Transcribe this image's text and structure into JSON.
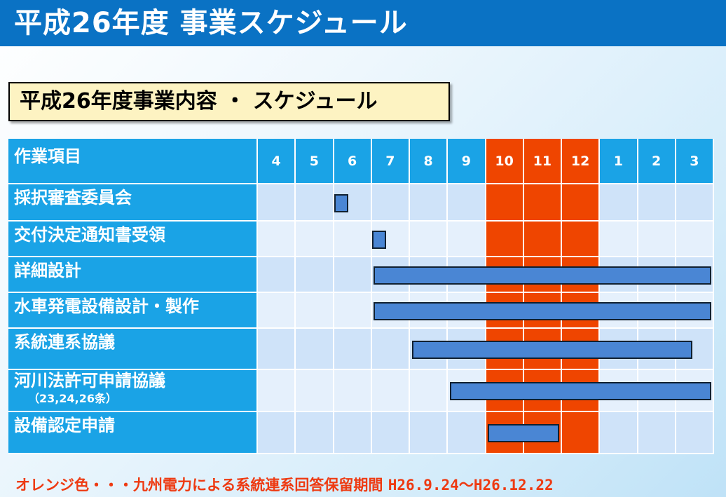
{
  "header": {
    "title": "平成26年度 事業スケジュール"
  },
  "subtitle": "平成26年度事業内容 ・ スケジュール",
  "table": {
    "task_header": "作業項目",
    "months": [
      "4",
      "5",
      "6",
      "7",
      "8",
      "9",
      "10",
      "11",
      "12",
      "1",
      "2",
      "3"
    ],
    "highlight_months": [
      "10",
      "11",
      "12"
    ],
    "tasks": [
      {
        "label": "採択審査委員会",
        "note": "",
        "start": 2,
        "end": 2.45
      },
      {
        "label": "交付決定通知書受領",
        "note": "",
        "start": 3,
        "end": 3.45
      },
      {
        "label": "詳細設計",
        "note": "",
        "start": 3.05,
        "end": 12
      },
      {
        "label": "水車発電設備設計・製作",
        "note": "",
        "start": 3.05,
        "end": 12
      },
      {
        "label": "系統連系協議",
        "note": "",
        "start": 4.05,
        "end": 11.5
      },
      {
        "label": "河川法許可申請協議",
        "note": "（23,24,26条）",
        "start": 5.05,
        "end": 12
      },
      {
        "label": "設備認定申請",
        "note": "",
        "start": 6.05,
        "end": 8
      }
    ]
  },
  "colors": {
    "header_bg": "#0a72c4",
    "month_header_bg": "#1aa3e6",
    "highlight": "#ef4500",
    "row_a": "#cfe3f9",
    "row_b": "#e5f0fc",
    "bar": "#4a86d4"
  },
  "footer": {
    "text": "オレンジ色・・・九州電力による系統連系回答保留期間",
    "dates": "H26.9.24〜H26.12.22"
  }
}
